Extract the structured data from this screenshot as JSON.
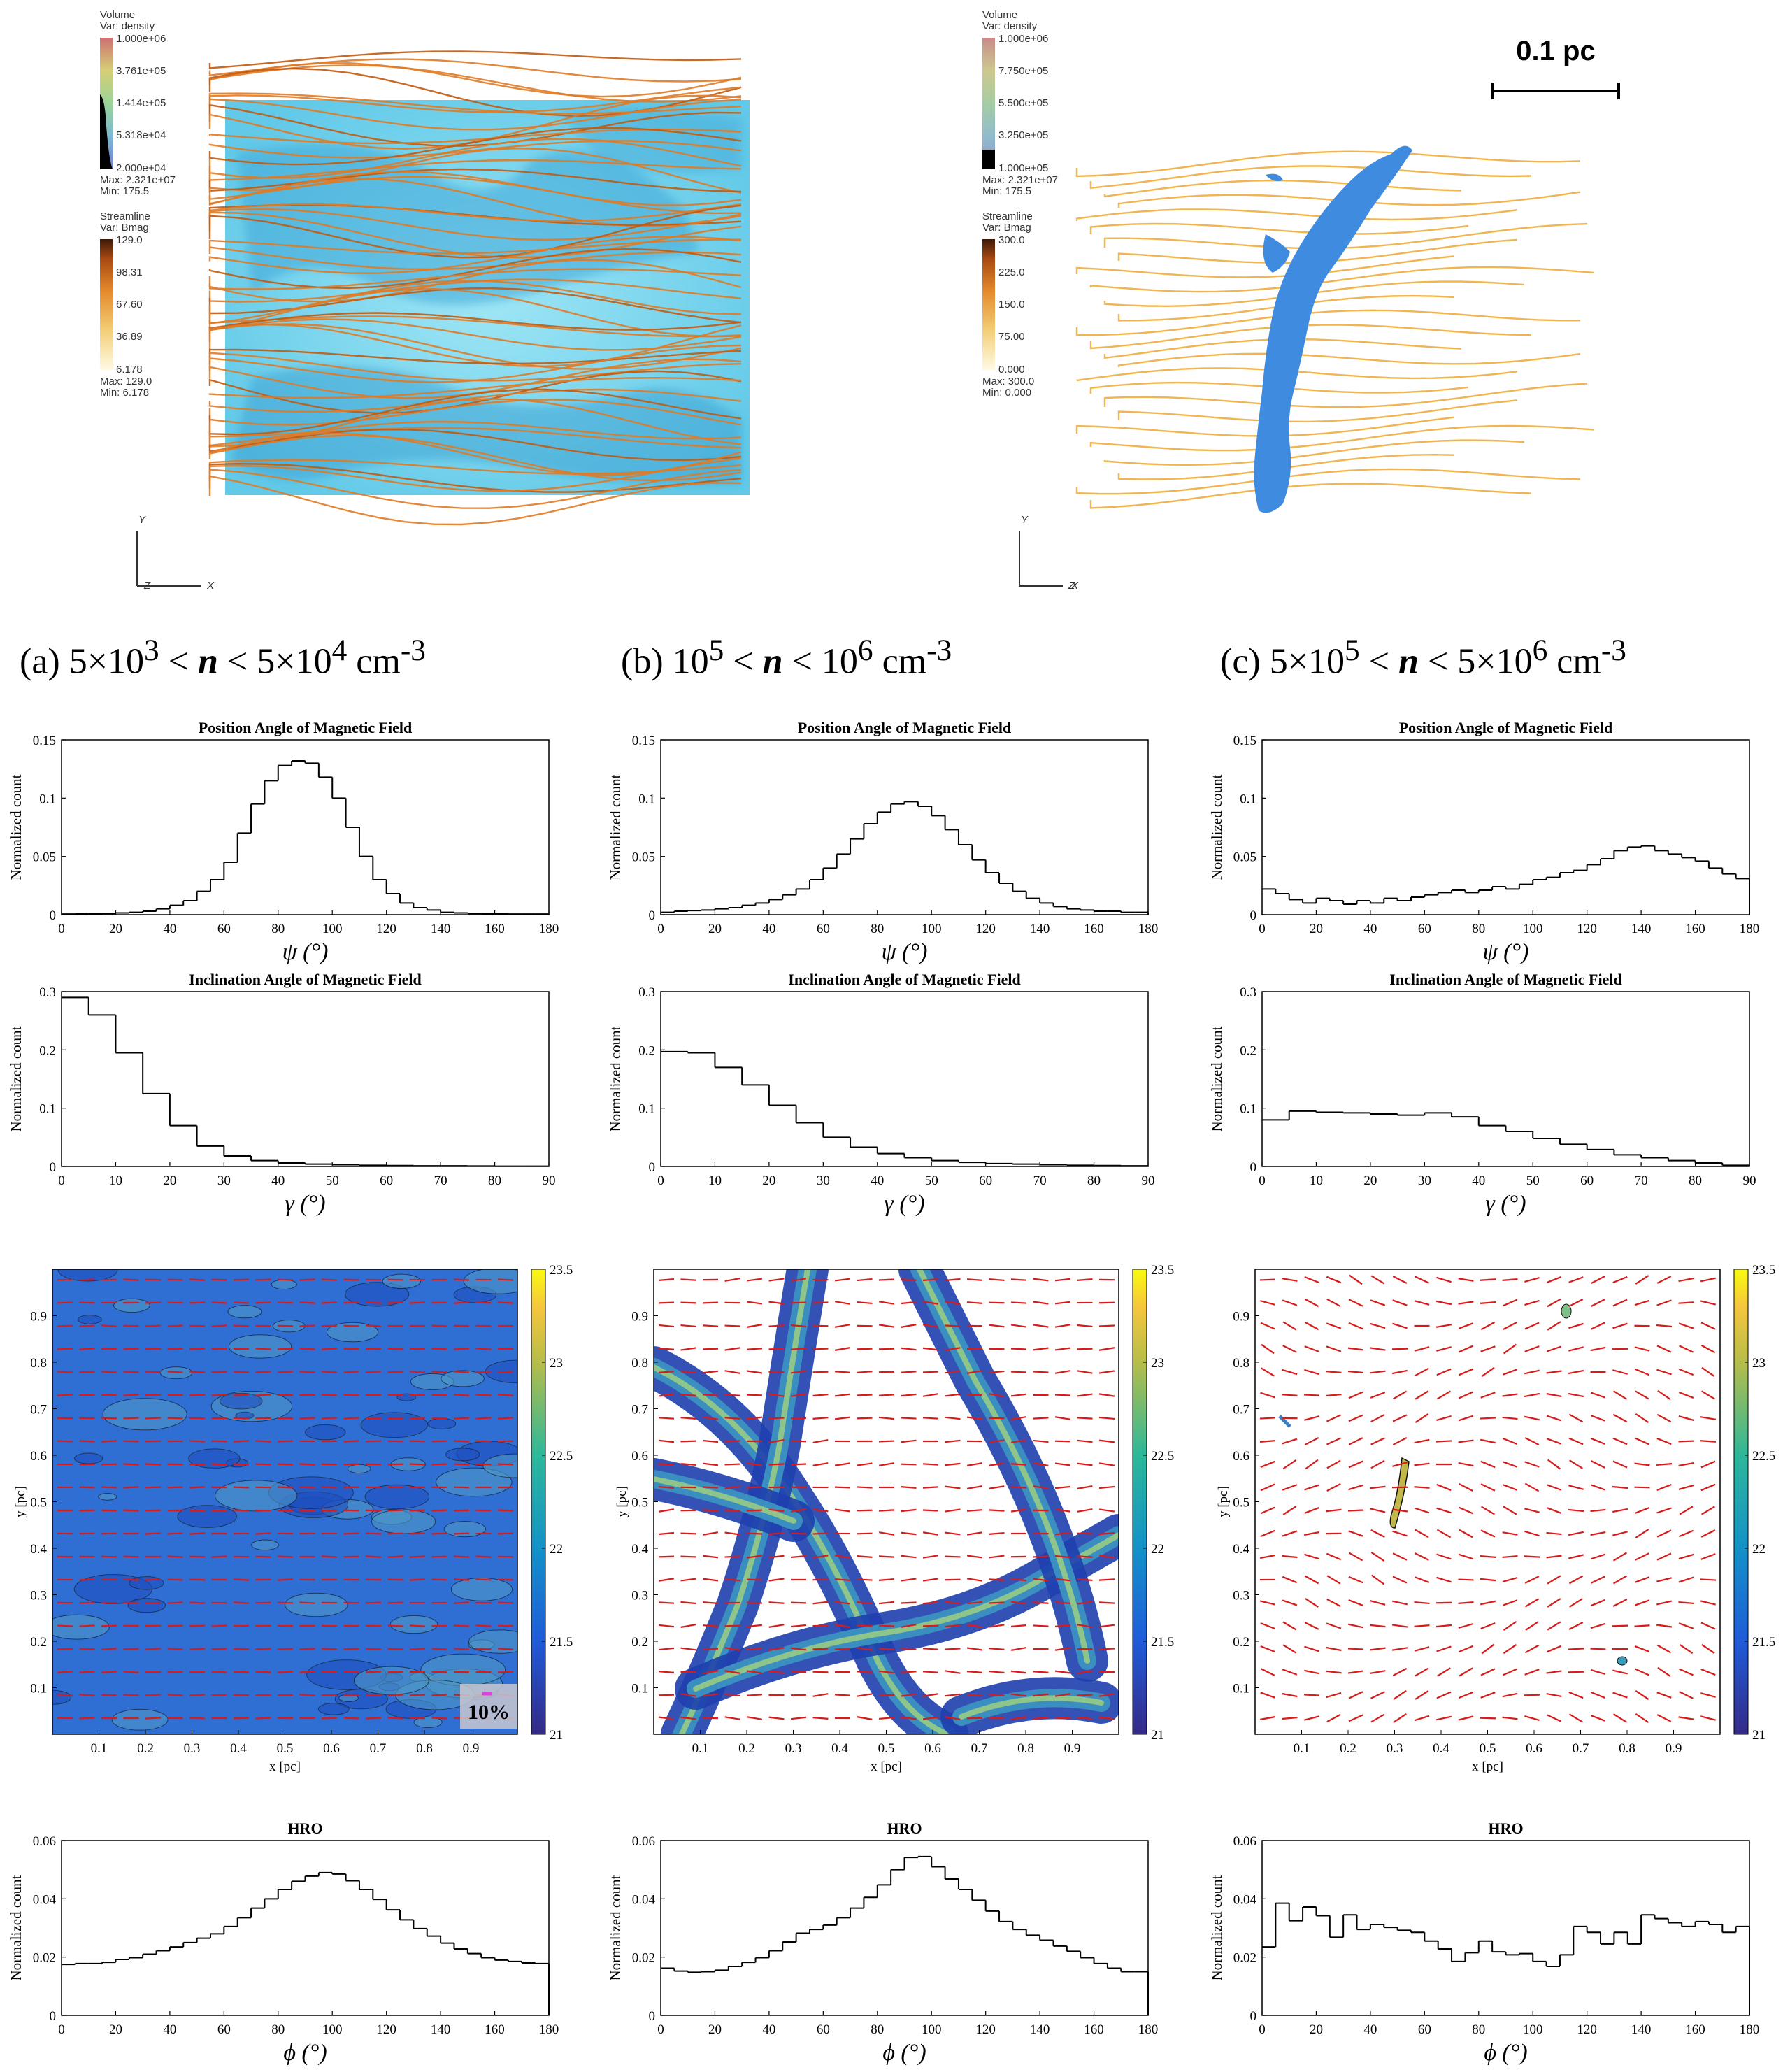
{
  "render3d": {
    "left": {
      "vol_title": "Volume",
      "vol_var": "Var: density",
      "vol_ticks": [
        "1.000e+06",
        "3.761e+05",
        "1.414e+05",
        "5.318e+04",
        "2.000e+04"
      ],
      "vol_max": "Max:  2.321e+07",
      "vol_min": "Min:  175.5",
      "st_title": "Streamline",
      "st_var": "Var: Bmag",
      "st_ticks": [
        "129.0",
        "98.31",
        "67.60",
        "36.89",
        "6.178"
      ],
      "st_max": "Max:  129.0",
      "st_min": "Min:  6.178",
      "axes": [
        "Y",
        "Z",
        "X"
      ]
    },
    "right": {
      "vol_title": "Volume",
      "vol_var": "Var: density",
      "vol_ticks": [
        "1.000e+06",
        "7.750e+05",
        "5.500e+05",
        "3.250e+05",
        "1.000e+05"
      ],
      "vol_max": "Max:  2.321e+07",
      "vol_min": "Min:  175.5",
      "st_title": "Streamline",
      "st_var": "Var: Bmag",
      "st_ticks": [
        "300.0",
        "225.0",
        "150.0",
        "75.00",
        "0.000"
      ],
      "st_max": "Max:  300.0",
      "st_min": "Min:  0.000",
      "axes": [
        "Y",
        "Z",
        "X"
      ],
      "scalebar": "0.1 pc"
    }
  },
  "captions": [
    {
      "pre": "(a) 5×10",
      "e1": "3",
      "mid": " < ",
      "n": "n",
      "lt": " < 5×10",
      "e2": "4",
      "unit": " cm",
      "e3": "-3"
    },
    {
      "pre": "(b) 10",
      "e1": "5",
      "mid": " < ",
      "n": "n",
      "lt": " < 10",
      "e2": "6",
      "unit": " cm",
      "e3": "-3"
    },
    {
      "pre": "(c) 5×10",
      "e1": "5",
      "mid": " < ",
      "n": "n",
      "lt": " < 5×10",
      "e2": "6",
      "unit": " cm",
      "e3": "-3"
    }
  ],
  "chart_data": [
    {
      "id": "pa-a",
      "type": "step",
      "title": "Position Angle of Magnetic Field",
      "xlabel": "ψ (°)",
      "ylabel": "Normalized count",
      "xlim": [
        0,
        180
      ],
      "ylim": [
        0,
        0.15
      ],
      "xticks": [
        0,
        20,
        40,
        60,
        80,
        100,
        120,
        140,
        160,
        180
      ],
      "yticks": [
        0,
        0.05,
        0.1,
        0.15
      ],
      "ytick_labels": [
        "0",
        "0.05",
        "0.1",
        "0.15"
      ],
      "bin_width": 5,
      "values": [
        0.0005,
        0.0006,
        0.0008,
        0.001,
        0.0015,
        0.002,
        0.003,
        0.005,
        0.008,
        0.012,
        0.02,
        0.03,
        0.045,
        0.07,
        0.095,
        0.115,
        0.128,
        0.132,
        0.13,
        0.118,
        0.1,
        0.075,
        0.05,
        0.03,
        0.018,
        0.01,
        0.006,
        0.004,
        0.002,
        0.0015,
        0.001,
        0.0008,
        0.0006,
        0.0005,
        0.0005,
        0.0005
      ]
    },
    {
      "id": "pa-b",
      "type": "step",
      "title": "Position Angle of Magnetic Field",
      "xlabel": "ψ (°)",
      "ylabel": "Normalized count",
      "xlim": [
        0,
        180
      ],
      "ylim": [
        0,
        0.15
      ],
      "xticks": [
        0,
        20,
        40,
        60,
        80,
        100,
        120,
        140,
        160,
        180
      ],
      "yticks": [
        0,
        0.05,
        0.1,
        0.15
      ],
      "ytick_labels": [
        "0",
        "0.05",
        "0.1",
        "0.15"
      ],
      "bin_width": 5,
      "values": [
        0.002,
        0.003,
        0.0035,
        0.004,
        0.005,
        0.006,
        0.008,
        0.01,
        0.013,
        0.017,
        0.022,
        0.03,
        0.04,
        0.052,
        0.065,
        0.078,
        0.088,
        0.095,
        0.097,
        0.093,
        0.085,
        0.073,
        0.06,
        0.047,
        0.036,
        0.027,
        0.02,
        0.014,
        0.01,
        0.007,
        0.005,
        0.004,
        0.003,
        0.003,
        0.002,
        0.002
      ]
    },
    {
      "id": "pa-c",
      "type": "step",
      "title": "Position Angle of Magnetic Field",
      "xlabel": "ψ (°)",
      "ylabel": "Normalized count",
      "xlim": [
        0,
        180
      ],
      "ylim": [
        0,
        0.15
      ],
      "xticks": [
        0,
        20,
        40,
        60,
        80,
        100,
        120,
        140,
        160,
        180
      ],
      "yticks": [
        0,
        0.05,
        0.1,
        0.15
      ],
      "ytick_labels": [
        "0",
        "0.05",
        "0.1",
        "0.15"
      ],
      "bin_width": 5,
      "values": [
        0.022,
        0.018,
        0.013,
        0.01,
        0.014,
        0.012,
        0.009,
        0.012,
        0.01,
        0.014,
        0.012,
        0.015,
        0.017,
        0.019,
        0.021,
        0.019,
        0.021,
        0.024,
        0.022,
        0.026,
        0.03,
        0.032,
        0.036,
        0.038,
        0.043,
        0.048,
        0.055,
        0.058,
        0.059,
        0.055,
        0.052,
        0.049,
        0.046,
        0.04,
        0.035,
        0.031
      ]
    },
    {
      "id": "inc-a",
      "type": "step",
      "title": "Inclination Angle of Magnetic Field",
      "xlabel": "γ (°)",
      "ylabel": "Normalized count",
      "xlim": [
        0,
        90
      ],
      "ylim": [
        0,
        0.3
      ],
      "xticks": [
        0,
        10,
        20,
        30,
        40,
        50,
        60,
        70,
        80,
        90
      ],
      "yticks": [
        0,
        0.1,
        0.2,
        0.3
      ],
      "ytick_labels": [
        "0",
        "0.1",
        "0.2",
        "0.3"
      ],
      "bin_width": 5,
      "values": [
        0.29,
        0.26,
        0.195,
        0.125,
        0.07,
        0.035,
        0.018,
        0.01,
        0.006,
        0.004,
        0.003,
        0.002,
        0.0015,
        0.001,
        0.001,
        0.0008,
        0.0005,
        0.0005
      ]
    },
    {
      "id": "inc-b",
      "type": "step",
      "title": "Inclination Angle of Magnetic Field",
      "xlabel": "γ (°)",
      "ylabel": "Normalized count",
      "xlim": [
        0,
        90
      ],
      "ylim": [
        0,
        0.3
      ],
      "xticks": [
        0,
        10,
        20,
        30,
        40,
        50,
        60,
        70,
        80,
        90
      ],
      "yticks": [
        0,
        0.1,
        0.2,
        0.3
      ],
      "ytick_labels": [
        "0",
        "0.1",
        "0.2",
        "0.3"
      ],
      "bin_width": 5,
      "values": [
        0.197,
        0.195,
        0.17,
        0.14,
        0.105,
        0.075,
        0.05,
        0.033,
        0.022,
        0.015,
        0.01,
        0.007,
        0.005,
        0.004,
        0.003,
        0.002,
        0.0015,
        0.001
      ]
    },
    {
      "id": "inc-c",
      "type": "step",
      "title": "Inclination Angle of Magnetic Field",
      "xlabel": "γ (°)",
      "ylabel": "Normalized count",
      "xlim": [
        0,
        90
      ],
      "ylim": [
        0,
        0.3
      ],
      "xticks": [
        0,
        10,
        20,
        30,
        40,
        50,
        60,
        70,
        80,
        90
      ],
      "yticks": [
        0,
        0.1,
        0.2,
        0.3
      ],
      "ytick_labels": [
        "0",
        "0.1",
        "0.2",
        "0.3"
      ],
      "bin_width": 5,
      "values": [
        0.08,
        0.095,
        0.093,
        0.092,
        0.09,
        0.088,
        0.092,
        0.085,
        0.07,
        0.06,
        0.048,
        0.038,
        0.029,
        0.02,
        0.015,
        0.01,
        0.006,
        0.002
      ]
    },
    {
      "id": "map-a",
      "type": "heatmap",
      "xlabel": "x [pc]",
      "ylabel": "y [pc]",
      "xlim": [
        0,
        1
      ],
      "ylim": [
        0,
        1
      ],
      "xticks": [
        "0.1",
        "0.2",
        "0.3",
        "0.4",
        "0.5",
        "0.6",
        "0.7",
        "0.8",
        "0.9"
      ],
      "yticks": [
        "0.1",
        "0.2",
        "0.3",
        "0.4",
        "0.5",
        "0.6",
        "0.7",
        "0.8",
        "0.9"
      ],
      "colorbar": {
        "range": [
          21,
          23.5
        ],
        "ticks": [
          "21",
          "21.5",
          "22",
          "22.5",
          "23",
          "23.5"
        ]
      },
      "annotation": "10%"
    },
    {
      "id": "map-b",
      "type": "heatmap",
      "xlabel": "x [pc]",
      "ylabel": "y [pc]",
      "xlim": [
        0,
        1
      ],
      "ylim": [
        0,
        1
      ],
      "xticks": [
        "0.1",
        "0.2",
        "0.3",
        "0.4",
        "0.5",
        "0.6",
        "0.7",
        "0.8",
        "0.9"
      ],
      "yticks": [
        "0.1",
        "0.2",
        "0.3",
        "0.4",
        "0.5",
        "0.6",
        "0.7",
        "0.8",
        "0.9"
      ],
      "colorbar": {
        "range": [
          21,
          23.5
        ],
        "ticks": [
          "21",
          "21.5",
          "22",
          "22.5",
          "23",
          "23.5"
        ]
      }
    },
    {
      "id": "map-c",
      "type": "heatmap",
      "xlabel": "x [pc]",
      "ylabel": "y [pc]",
      "xlim": [
        0,
        1
      ],
      "ylim": [
        0,
        1
      ],
      "xticks": [
        "0.1",
        "0.2",
        "0.3",
        "0.4",
        "0.5",
        "0.6",
        "0.7",
        "0.8",
        "0.9"
      ],
      "yticks": [
        "0.1",
        "0.2",
        "0.3",
        "0.4",
        "0.5",
        "0.6",
        "0.7",
        "0.8",
        "0.9"
      ],
      "colorbar": {
        "range": [
          21,
          23.5
        ],
        "ticks": [
          "21",
          "21.5",
          "22",
          "22.5",
          "23",
          "23.5"
        ]
      }
    },
    {
      "id": "hro-a",
      "type": "step",
      "title": "HRO",
      "xlabel": "ϕ (°)",
      "ylabel": "Normalized count",
      "xlim": [
        0,
        180
      ],
      "ylim": [
        0,
        0.06
      ],
      "xticks": [
        0,
        20,
        40,
        60,
        80,
        100,
        120,
        140,
        160,
        180
      ],
      "yticks": [
        0,
        0.02,
        0.04,
        0.06
      ],
      "ytick_labels": [
        "0",
        "0.02",
        "0.04",
        "0.06"
      ],
      "bin_width": 5,
      "values": [
        0.0175,
        0.0178,
        0.0178,
        0.0182,
        0.0192,
        0.0198,
        0.021,
        0.0222,
        0.0235,
        0.025,
        0.0265,
        0.028,
        0.0305,
        0.0335,
        0.0368,
        0.04,
        0.0432,
        0.046,
        0.0478,
        0.049,
        0.0485,
        0.0462,
        0.0432,
        0.0398,
        0.0362,
        0.0328,
        0.0298,
        0.0272,
        0.0248,
        0.0228,
        0.0212,
        0.0198,
        0.019,
        0.0185,
        0.018,
        0.0178
      ]
    },
    {
      "id": "hro-b",
      "type": "step",
      "title": "HRO",
      "xlabel": "ϕ (°)",
      "ylabel": "Normalized count",
      "xlim": [
        0,
        180
      ],
      "ylim": [
        0,
        0.06
      ],
      "xticks": [
        0,
        20,
        40,
        60,
        80,
        100,
        120,
        140,
        160,
        180
      ],
      "yticks": [
        0,
        0.02,
        0.04,
        0.06
      ],
      "ytick_labels": [
        "0",
        "0.02",
        "0.04",
        "0.06"
      ],
      "bin_width": 5,
      "values": [
        0.0162,
        0.0152,
        0.0148,
        0.015,
        0.0155,
        0.0168,
        0.0182,
        0.0198,
        0.0222,
        0.0252,
        0.0282,
        0.0295,
        0.031,
        0.0335,
        0.0368,
        0.0405,
        0.0448,
        0.05,
        0.0542,
        0.0545,
        0.051,
        0.0468,
        0.0432,
        0.0395,
        0.0358,
        0.0322,
        0.0295,
        0.0275,
        0.0258,
        0.0238,
        0.022,
        0.0198,
        0.0178,
        0.0162,
        0.015,
        0.015
      ]
    },
    {
      "id": "hro-c",
      "type": "step",
      "title": "HRO",
      "xlabel": "ϕ (°)",
      "ylabel": "Normalized count",
      "xlim": [
        0,
        180
      ],
      "ylim": [
        0,
        0.06
      ],
      "xticks": [
        0,
        20,
        40,
        60,
        80,
        100,
        120,
        140,
        160,
        180
      ],
      "yticks": [
        0,
        0.02,
        0.04,
        0.06
      ],
      "ytick_labels": [
        "0",
        "0.02",
        "0.04",
        "0.06"
      ],
      "bin_width": 5,
      "values": [
        0.0235,
        0.0385,
        0.0325,
        0.0372,
        0.0342,
        0.0268,
        0.0345,
        0.0295,
        0.0312,
        0.0302,
        0.0292,
        0.0285,
        0.0255,
        0.0228,
        0.0185,
        0.0215,
        0.0255,
        0.0218,
        0.0208,
        0.0212,
        0.0185,
        0.0168,
        0.0208,
        0.0305,
        0.0285,
        0.0245,
        0.0285,
        0.0245,
        0.0345,
        0.0332,
        0.0318,
        0.0305,
        0.0322,
        0.0312,
        0.0285,
        0.0305
      ]
    }
  ]
}
